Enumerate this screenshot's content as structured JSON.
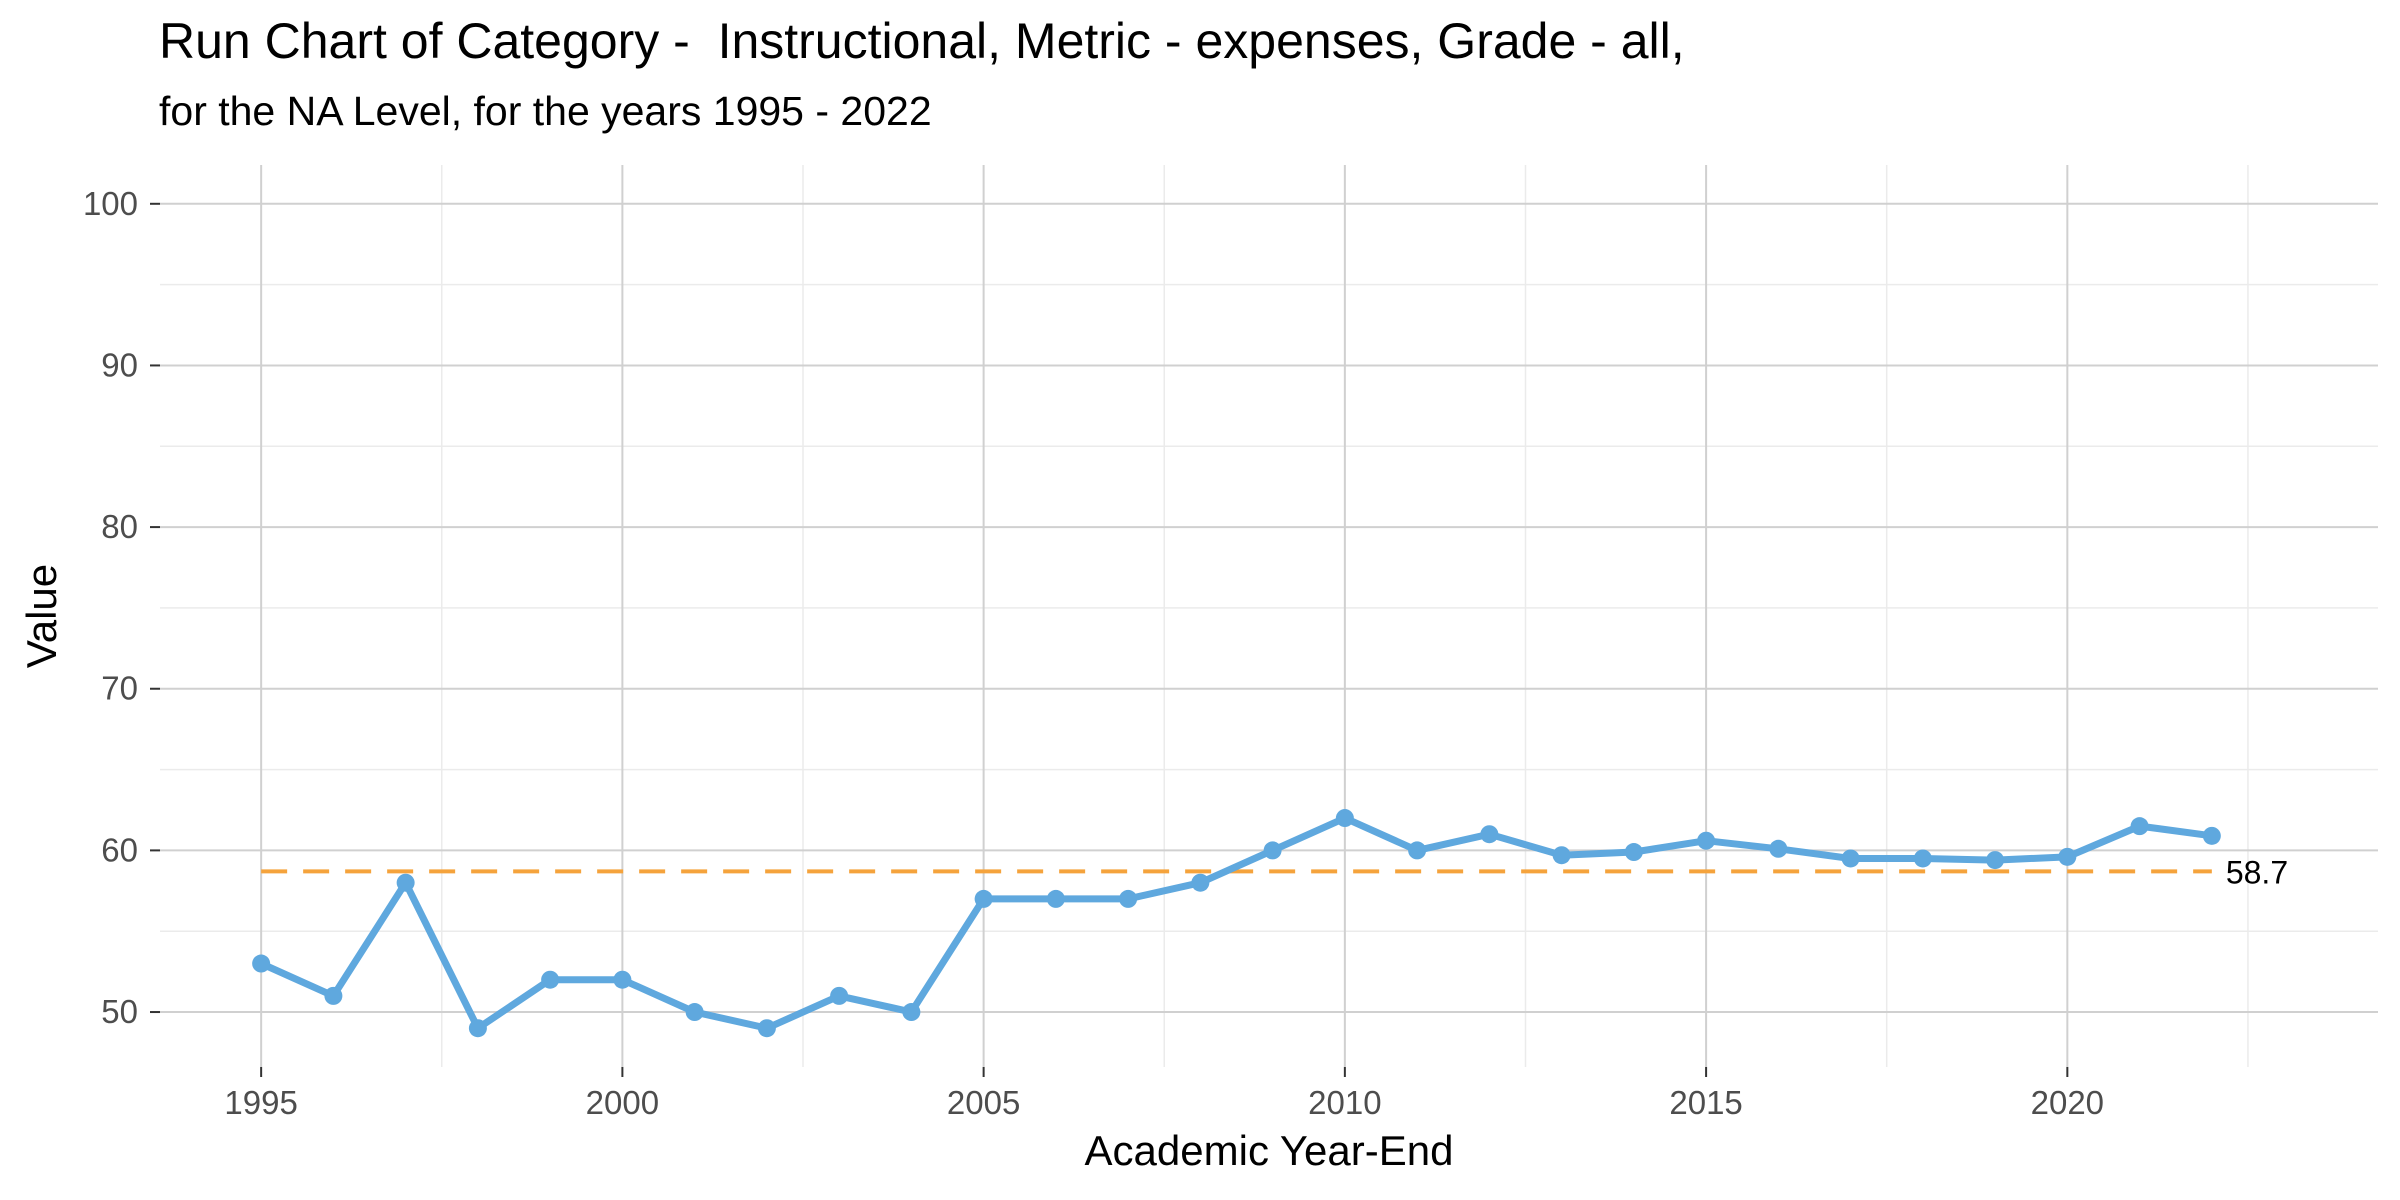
{
  "chart_data": {
    "type": "line",
    "title": "Run Chart of Category -  Instructional, Metric - expenses, Grade - all,",
    "subtitle": "for the NA Level, for the years 1995 - 2022",
    "xlabel": "Academic Year-End",
    "ylabel": "Value",
    "xlim": [
      1993.6,
      2024.3
    ],
    "ylim": [
      46.6,
      102.4
    ],
    "x_ticks": [
      1995,
      2000,
      2005,
      2010,
      2015,
      2020
    ],
    "x_minor_ticks": [
      1997.5,
      2002.5,
      2007.5,
      2012.5,
      2017.5,
      2022.5
    ],
    "y_ticks": [
      50,
      60,
      70,
      80,
      90,
      100
    ],
    "y_minor_ticks": [
      55,
      65,
      75,
      85,
      95
    ],
    "grid": true,
    "series": [
      {
        "color": "#5fa8de",
        "x": [
          1995,
          1996,
          1997,
          1998,
          1999,
          2000,
          2001,
          2002,
          2003,
          2004,
          2005,
          2006,
          2007,
          2008,
          2009,
          2010,
          2011,
          2012,
          2013,
          2014,
          2015,
          2016,
          2017,
          2018,
          2019,
          2020,
          2021,
          2022
        ],
        "values": [
          53,
          51,
          58,
          49,
          52,
          52,
          50,
          49,
          51,
          50,
          57,
          57,
          57,
          58,
          60,
          62,
          60,
          61,
          59.7,
          59.9,
          60.6,
          60.1,
          59.5,
          59.5,
          59.4,
          59.6,
          61.5,
          60.9
        ]
      }
    ],
    "reference_line": {
      "value": 58.7,
      "label": "58.7",
      "color": "#f5a33c",
      "style": "dashed",
      "x_range": [
        1995,
        2022
      ]
    }
  }
}
